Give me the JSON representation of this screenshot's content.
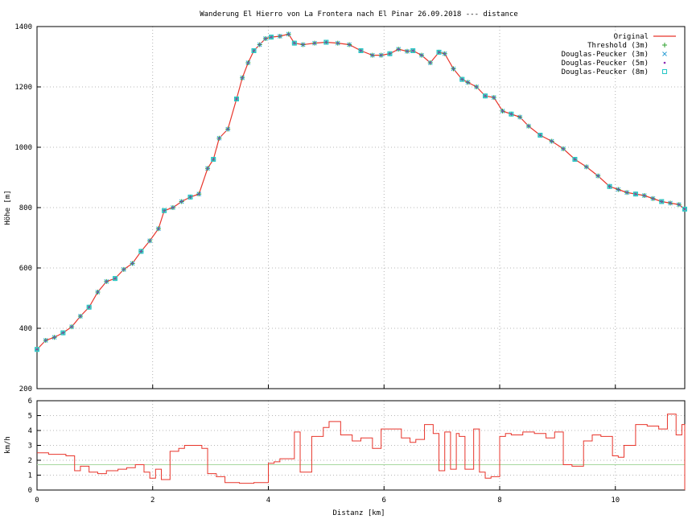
{
  "chart_data": [
    {
      "type": "line",
      "title": "Wanderung El Hierro von La Frontera nach El Pinar 26.09.2018 --- distance",
      "ylabel": "Höhe [m]",
      "xlabel": "",
      "xlim": [
        0,
        11.2
      ],
      "ylim": [
        200,
        1400
      ],
      "xticks": [
        0,
        2,
        4,
        6,
        8,
        10
      ],
      "yticks": [
        200,
        400,
        600,
        800,
        1000,
        1200,
        1400
      ],
      "grid": true,
      "legend_position": "top-right",
      "series": [
        {
          "name": "Original",
          "style": "line",
          "color": "#e8352b"
        },
        {
          "name": "Threshold (3m)",
          "style": "plus",
          "color": "#2ca02c"
        },
        {
          "name": "Douglas-Peucker (3m)",
          "style": "cross",
          "color": "#2f9fd6"
        },
        {
          "name": "Douglas-Peucker (5m)",
          "style": "dot",
          "color": "#8e2bb4"
        },
        {
          "name": "Douglas-Peucker (8m)",
          "style": "square",
          "color": "#27c7c7"
        }
      ],
      "x": [
        0,
        0.15,
        0.3,
        0.45,
        0.6,
        0.75,
        0.9,
        1.05,
        1.2,
        1.35,
        1.5,
        1.65,
        1.8,
        1.95,
        2.1,
        2.2,
        2.35,
        2.5,
        2.65,
        2.8,
        2.95,
        3.05,
        3.15,
        3.3,
        3.45,
        3.55,
        3.65,
        3.75,
        3.85,
        3.95,
        4.05,
        4.2,
        4.35,
        4.45,
        4.6,
        4.8,
        5.0,
        5.2,
        5.4,
        5.6,
        5.8,
        5.95,
        6.1,
        6.25,
        6.4,
        6.5,
        6.65,
        6.8,
        6.95,
        7.05,
        7.2,
        7.35,
        7.45,
        7.6,
        7.75,
        7.9,
        8.05,
        8.2,
        8.35,
        8.5,
        8.7,
        8.9,
        9.1,
        9.3,
        9.5,
        9.7,
        9.9,
        10.05,
        10.2,
        10.35,
        10.5,
        10.65,
        10.8,
        10.95,
        11.1,
        11.2
      ],
      "y": [
        330,
        360,
        370,
        385,
        405,
        440,
        470,
        520,
        555,
        565,
        595,
        615,
        655,
        690,
        730,
        790,
        800,
        820,
        835,
        845,
        930,
        960,
        1030,
        1060,
        1160,
        1230,
        1280,
        1320,
        1340,
        1360,
        1365,
        1368,
        1375,
        1345,
        1340,
        1345,
        1348,
        1345,
        1340,
        1320,
        1305,
        1305,
        1310,
        1325,
        1318,
        1320,
        1305,
        1280,
        1315,
        1310,
        1260,
        1225,
        1215,
        1200,
        1170,
        1165,
        1120,
        1110,
        1100,
        1070,
        1040,
        1020,
        995,
        960,
        935,
        905,
        870,
        860,
        850,
        845,
        840,
        830,
        820,
        815,
        810,
        795
      ]
    },
    {
      "type": "line",
      "title": "",
      "xlabel": "Distanz [km]",
      "ylabel": "km/h",
      "xlim": [
        0,
        11.2
      ],
      "ylim": [
        0,
        6
      ],
      "xticks": [
        0,
        2,
        4,
        6,
        8,
        10
      ],
      "yticks": [
        0,
        1,
        2,
        3,
        4,
        5,
        6
      ],
      "grid": true,
      "reference_line": {
        "y": 1.7,
        "color": "#a8d8a0"
      },
      "series": [
        {
          "name": "",
          "style": "step",
          "color": "#e8352b",
          "x": [
            0,
            0.2,
            0.5,
            0.65,
            0.75,
            0.9,
            1.05,
            1.2,
            1.4,
            1.55,
            1.7,
            1.85,
            1.95,
            2.05,
            2.15,
            2.3,
            2.45,
            2.55,
            2.85,
            2.95,
            3.1,
            3.25,
            3.5,
            3.75,
            4.0,
            4.1,
            4.2,
            4.45,
            4.55,
            4.75,
            4.95,
            5.05,
            5.25,
            5.45,
            5.6,
            5.8,
            5.95,
            6.1,
            6.3,
            6.45,
            6.55,
            6.7,
            6.85,
            6.95,
            7.05,
            7.15,
            7.25,
            7.3,
            7.4,
            7.55,
            7.65,
            7.75,
            7.85,
            8.0,
            8.1,
            8.2,
            8.4,
            8.6,
            8.8,
            8.95,
            9.1,
            9.25,
            9.45,
            9.6,
            9.75,
            9.95,
            10.05,
            10.15,
            10.35,
            10.55,
            10.75,
            10.9,
            11.05,
            11.15,
            11.2
          ],
          "y": [
            2.5,
            2.4,
            2.3,
            1.3,
            1.6,
            1.2,
            1.1,
            1.3,
            1.4,
            1.5,
            1.7,
            1.2,
            0.8,
            1.4,
            0.7,
            2.6,
            2.8,
            3.0,
            2.8,
            1.1,
            0.9,
            0.5,
            0.45,
            0.5,
            1.8,
            1.9,
            2.1,
            3.9,
            1.2,
            3.6,
            4.2,
            4.6,
            3.7,
            3.3,
            3.5,
            2.8,
            4.1,
            4.1,
            3.5,
            3.2,
            3.4,
            4.4,
            3.8,
            1.3,
            3.9,
            1.4,
            3.8,
            3.6,
            1.4,
            4.1,
            1.2,
            0.8,
            0.9,
            3.6,
            3.8,
            3.7,
            3.9,
            3.8,
            3.5,
            3.9,
            1.7,
            1.6,
            3.3,
            3.7,
            3.6,
            2.3,
            2.2,
            3.0,
            4.4,
            4.3,
            4.1,
            5.1,
            3.7,
            4.4,
            0.0
          ]
        }
      ]
    }
  ]
}
